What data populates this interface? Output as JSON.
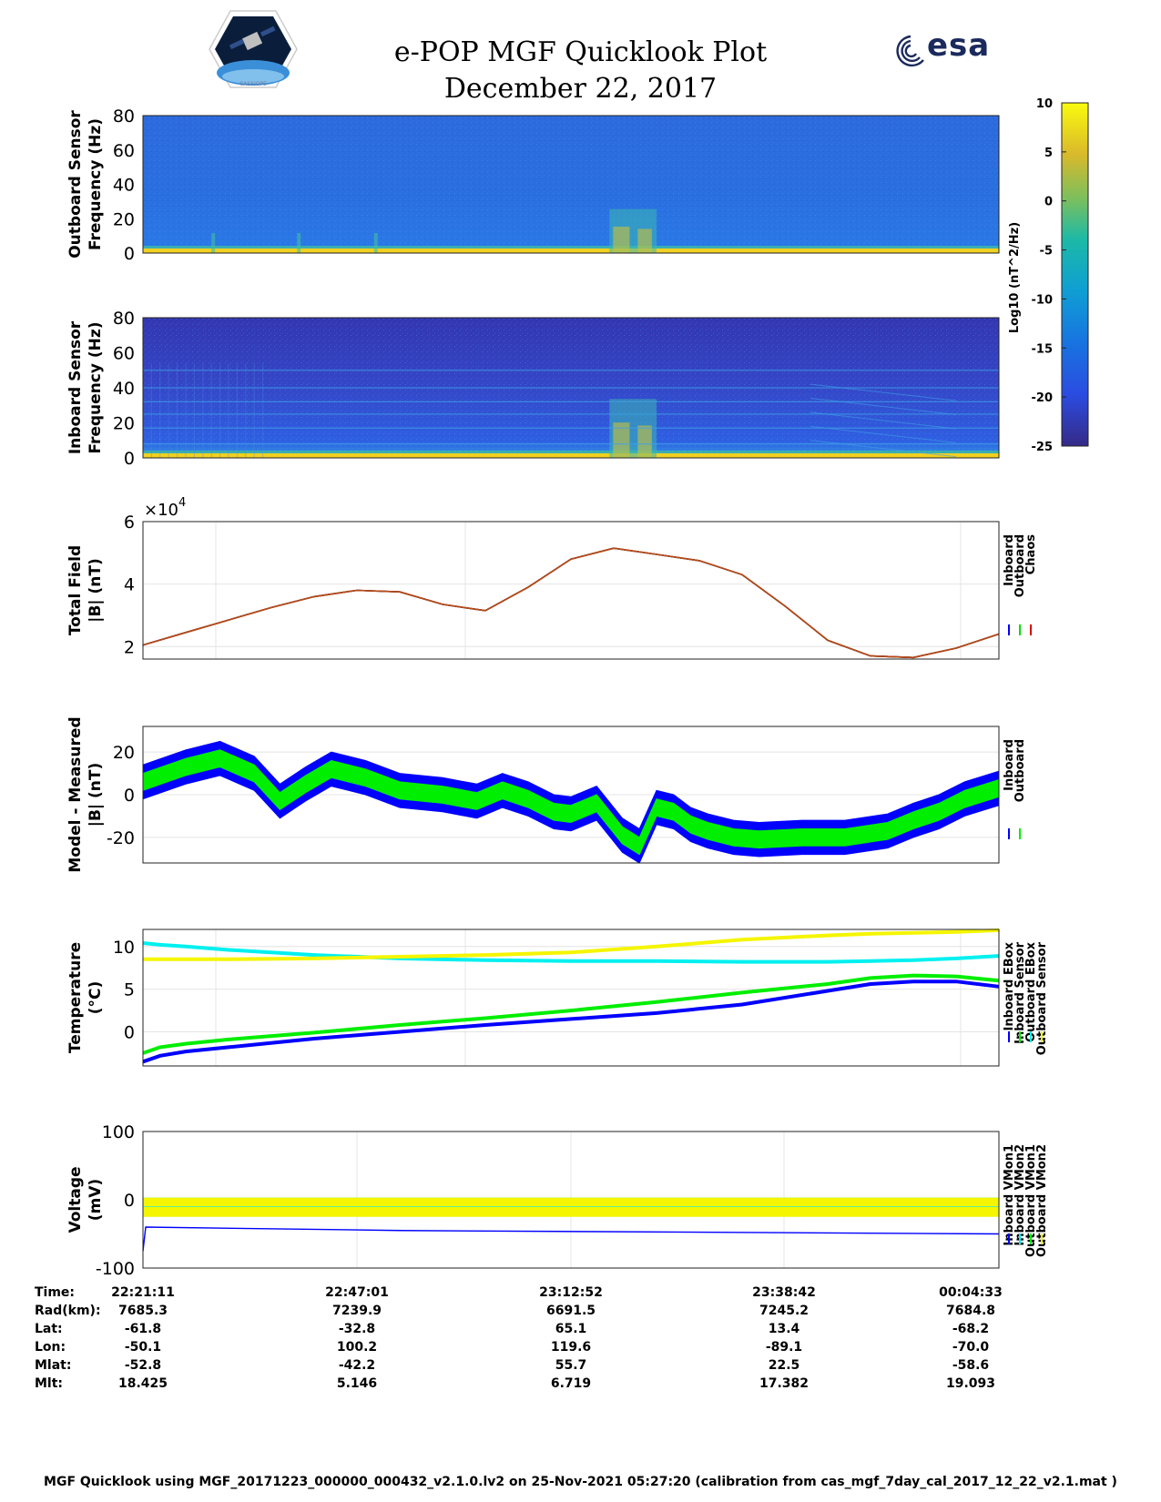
{
  "header": {
    "title_line1": "e-POP MGF Quicklook Plot",
    "title_line2": "December 22, 2017",
    "logo_right_text": "esa",
    "logo_left_caption": "CASSIOPE"
  },
  "colorbar": {
    "label": "Log10 (nT^2/Hz)",
    "ticks": [
      "10",
      "5",
      "0",
      "-5",
      "-10",
      "-15",
      "-20",
      "-25"
    ],
    "range": [
      -25,
      10
    ]
  },
  "chart_data": [
    {
      "type": "heatmap",
      "name": "outboard-spectrogram",
      "ylabel_line1": "Outboard Sensor",
      "ylabel_line2": "Frequency (Hz)",
      "yticks": [
        "80",
        "60",
        "40",
        "20",
        "0"
      ],
      "ylim": [
        0,
        80
      ],
      "features": "Low-frequency power concentrated near 0–2 Hz; broadband burst near 23:15–23:19 up to ~25 Hz"
    },
    {
      "type": "heatmap",
      "name": "inboard-spectrogram",
      "ylabel_line1": "Inboard Sensor",
      "ylabel_line2": "Frequency (Hz)",
      "yticks": [
        "80",
        "60",
        "40",
        "20",
        "0"
      ],
      "ylim": [
        0,
        80
      ],
      "features": "Horizontal interference lines near 8, 17, 25, 32, 40, 50 Hz; broadband burst near 23:15–23:19"
    },
    {
      "type": "line",
      "name": "total-field",
      "ylabel_line1": "Total Field",
      "ylabel_line2": "|B| (nT)",
      "exponent": "×10",
      "exponent_power": "4",
      "yticks": [
        "6",
        "4",
        "2"
      ],
      "ylim": [
        1.6,
        6.0
      ],
      "x": [
        0,
        0.05,
        0.1,
        0.15,
        0.2,
        0.25,
        0.3,
        0.35,
        0.4,
        0.45,
        0.5,
        0.55,
        0.6,
        0.65,
        0.7,
        0.75,
        0.8,
        0.85,
        0.9,
        0.95,
        1.0
      ],
      "series": [
        {
          "name": "Inboard",
          "color": "#0000ff",
          "values": [
            2.05,
            2.45,
            2.85,
            3.25,
            3.6,
            3.8,
            3.75,
            3.35,
            3.15,
            3.9,
            4.8,
            5.15,
            4.95,
            4.75,
            4.3,
            3.3,
            2.2,
            1.7,
            1.65,
            1.95,
            2.4
          ]
        },
        {
          "name": "Outboard",
          "color": "#00dd00",
          "values": [
            2.05,
            2.45,
            2.85,
            3.25,
            3.6,
            3.8,
            3.75,
            3.35,
            3.15,
            3.9,
            4.8,
            5.15,
            4.95,
            4.75,
            4.3,
            3.3,
            2.2,
            1.7,
            1.65,
            1.95,
            2.4
          ]
        },
        {
          "name": "Chaos",
          "color": "#dd0000",
          "values": [
            2.05,
            2.45,
            2.85,
            3.25,
            3.6,
            3.8,
            3.75,
            3.35,
            3.15,
            3.9,
            4.8,
            5.15,
            4.95,
            4.75,
            4.3,
            3.3,
            2.2,
            1.7,
            1.65,
            1.95,
            2.4
          ]
        }
      ]
    },
    {
      "type": "line",
      "name": "model-minus-measured",
      "ylabel_line1": "Model - Measured",
      "ylabel_line2": "|B| (nT)",
      "yticks": [
        "20",
        "0",
        "-20"
      ],
      "ylim": [
        -32,
        32
      ],
      "x": [
        0,
        0.05,
        0.09,
        0.13,
        0.16,
        0.19,
        0.22,
        0.26,
        0.3,
        0.35,
        0.39,
        0.42,
        0.45,
        0.48,
        0.5,
        0.53,
        0.56,
        0.58,
        0.6,
        0.62,
        0.64,
        0.66,
        0.69,
        0.72,
        0.77,
        0.82,
        0.87,
        0.9,
        0.93,
        0.96,
        1.0
      ],
      "series": [
        {
          "name": "Inboard",
          "color": "#0000ff",
          "band": 8,
          "values": [
            6,
            13,
            17,
            10,
            -3,
            5,
            12,
            8,
            2,
            0,
            -3,
            2,
            -2,
            -8,
            -9,
            -4,
            -19,
            -24,
            -6,
            -8,
            -14,
            -17,
            -20,
            -21,
            -20,
            -20,
            -17,
            -12,
            -8,
            -2,
            3
          ]
        },
        {
          "name": "Outboard",
          "color": "#00ee00",
          "band": 4,
          "values": [
            6,
            13,
            17,
            10,
            -3,
            5,
            12,
            8,
            2,
            0,
            -3,
            2,
            -2,
            -8,
            -9,
            -4,
            -19,
            -24,
            -6,
            -8,
            -14,
            -17,
            -20,
            -21,
            -20,
            -20,
            -17,
            -12,
            -8,
            -2,
            3
          ]
        }
      ]
    },
    {
      "type": "line",
      "name": "temperature",
      "ylabel_line1": "Temperature",
      "ylabel_line2": "(°C)",
      "yticks": [
        "10",
        "5",
        "0"
      ],
      "ylim": [
        -4,
        12
      ],
      "x": [
        0,
        0.02,
        0.05,
        0.1,
        0.2,
        0.3,
        0.4,
        0.5,
        0.6,
        0.7,
        0.8,
        0.85,
        0.9,
        0.95,
        1.0
      ],
      "series": [
        {
          "name": "Inboard EBox",
          "color": "#0000ff",
          "values": [
            -3.5,
            -2.8,
            -2.3,
            -1.8,
            -0.8,
            0.0,
            0.8,
            1.5,
            2.2,
            3.2,
            4.8,
            5.6,
            5.9,
            5.9,
            5.3
          ]
        },
        {
          "name": "Inboard Sensor",
          "color": "#00ee00",
          "values": [
            -2.5,
            -1.8,
            -1.4,
            -0.9,
            -0.1,
            0.8,
            1.6,
            2.5,
            3.5,
            4.6,
            5.6,
            6.3,
            6.6,
            6.5,
            6.0
          ]
        },
        {
          "name": "Outboard EBox",
          "color": "#00f0f0",
          "values": [
            10.4,
            10.2,
            10.0,
            9.6,
            9.0,
            8.6,
            8.4,
            8.3,
            8.3,
            8.2,
            8.2,
            8.3,
            8.4,
            8.6,
            8.9
          ]
        },
        {
          "name": "Outboard Sensor",
          "color": "#f5f500",
          "values": [
            8.5,
            8.5,
            8.5,
            8.5,
            8.6,
            8.8,
            9.0,
            9.3,
            10.0,
            10.8,
            11.3,
            11.5,
            11.6,
            11.7,
            11.9
          ]
        }
      ]
    },
    {
      "type": "line",
      "name": "voltage",
      "ylabel_line1": "Voltage",
      "ylabel_line2": "(mV)",
      "yticks": [
        "100",
        "0",
        "-100"
      ],
      "ylim": [
        -100,
        100
      ],
      "x": [
        0,
        1.0
      ],
      "series": [
        {
          "name": "Inboard VMon1",
          "color": "#0000ff",
          "values": [
            -40,
            -50
          ]
        },
        {
          "name": "Inboard VMon2",
          "color": "#00f0f0",
          "values": [
            -10,
            -10
          ]
        },
        {
          "name": "Outboard VMon1",
          "color": "#00ee00",
          "values": [
            -22,
            -22
          ]
        },
        {
          "name": "Outboard VMon2",
          "color": "#f5f500",
          "values": [
            -7,
            -7
          ]
        }
      ]
    }
  ],
  "ephemeris": {
    "row_labels": [
      "Time:",
      "Rad(km):",
      "Lat:",
      "Lon:",
      "Mlat:",
      "Mlt:"
    ],
    "columns": [
      [
        "22:21:11",
        "7685.3",
        "-61.8",
        "-50.1",
        "-52.8",
        "18.425"
      ],
      [
        "22:47:01",
        "7239.9",
        "-32.8",
        "100.2",
        "-42.2",
        "5.146"
      ],
      [
        "23:12:52",
        "6691.5",
        "65.1",
        "119.6",
        "55.7",
        "6.719"
      ],
      [
        "23:38:42",
        "7245.2",
        "13.4",
        "-89.1",
        "22.5",
        "17.382"
      ],
      [
        "00:04:33",
        "7684.8",
        "-68.2",
        "-70.0",
        "-58.6",
        "19.093"
      ]
    ]
  },
  "footer": {
    "text": "MGF Quicklook using MGF_20171223_000000_000432_v2.1.0.lv2 on 25-Nov-2021 05:27:20 (calibration from cas_mgf_7day_cal_2017_12_22_v2.1.mat )"
  }
}
